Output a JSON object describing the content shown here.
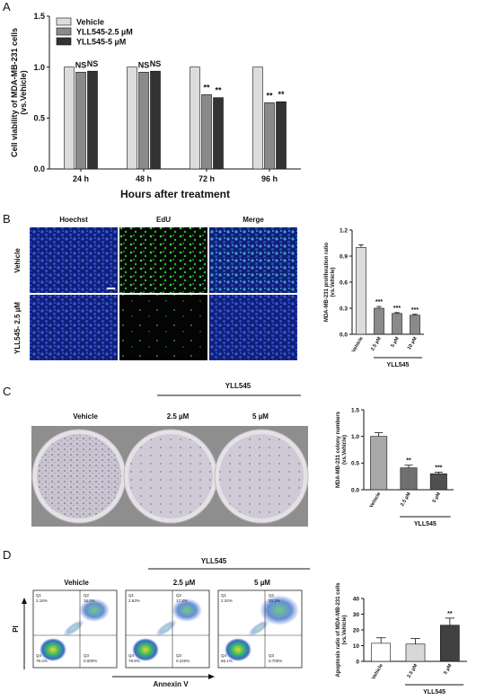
{
  "panel_labels": [
    "A",
    "B",
    "C",
    "D"
  ],
  "edu_images": {
    "columns": [
      "Hoechst",
      "EdU",
      "Merge"
    ],
    "rows": [
      "Vehicle",
      "YLL545- 2.5 µM"
    ]
  },
  "colony_images": {
    "group": "YLL545",
    "columns": [
      "Vehicle",
      "2.5 µM",
      "5 µM"
    ]
  },
  "flow_plots": {
    "group": "YLL545",
    "columns": [
      "Vehicle",
      "2.5 µM",
      "5 µM"
    ],
    "x_label": "Annexin V",
    "y_label": "PI",
    "quadrant_names": [
      "Q1",
      "Q2",
      "Q4",
      "Q3"
    ],
    "quadrant_values": [
      [
        "2.16%",
        "16.0%",
        "79.2%",
        "0.000%"
      ],
      [
        "2.63%",
        "17.3%",
        "79.8%",
        "0.240%"
      ],
      [
        "2.34%",
        "30.2%",
        "66.1%",
        "0.700%"
      ]
    ]
  },
  "chart_data": [
    {
      "type": "grouped_bar",
      "y_label": [
        "Cell viability of MDA-MB-231 cells",
        "(vs.Vehicle)"
      ],
      "x_label": "Hours after treatment",
      "categories": [
        "24 h",
        "48 h",
        "72 h",
        "96 h"
      ],
      "series": [
        {
          "name": "Vehicle",
          "color": "#dcdcdc",
          "values": [
            1.0,
            1.0,
            1.0,
            1.0
          ]
        },
        {
          "name": "YLL545-2.5 µM",
          "color": "#8a8a8a",
          "values": [
            0.95,
            0.95,
            0.73,
            0.65
          ],
          "annotations": [
            "NS",
            "NS",
            "**",
            "**"
          ]
        },
        {
          "name": "YLL545-5 µM",
          "color": "#333333",
          "values": [
            0.96,
            0.96,
            0.7,
            0.66
          ],
          "annotations": [
            "NS",
            "NS",
            "**",
            "**"
          ]
        }
      ],
      "ylim": [
        0,
        1.5
      ],
      "yticks": [
        {
          "value": 0,
          "label": "0.0"
        },
        0.5,
        {
          "value": 1,
          "label": "1.0"
        },
        1.5
      ],
      "legend": "top-left",
      "grid": false
    },
    {
      "type": "bar",
      "y_label": [
        "MDA-MB-231 proliferation ratio",
        "(vs.Vehicle)"
      ],
      "categories": [
        "Vehicle",
        "2.5 µM",
        "5 µM",
        "10 µM"
      ],
      "values": [
        1.0,
        0.3,
        0.24,
        0.22
      ],
      "errors": [
        0.03,
        0.02,
        0.01,
        0.01
      ],
      "annotations": [
        null,
        "***",
        "***",
        "***"
      ],
      "colors": [
        "#dcdcdc",
        "#8a8a8a",
        "#8a8a8a",
        "#8a8a8a"
      ],
      "group_label": "YLL545",
      "ylim": [
        0,
        1.2
      ],
      "yticks": [
        {
          "value": 0,
          "label": "0.0"
        },
        0.3,
        0.6,
        0.9,
        1.2
      ],
      "grid": false
    },
    {
      "type": "bar",
      "y_label": [
        "MDA-MB-231 colony numbers",
        "(vs.Vehicle)"
      ],
      "categories": [
        "Vehicle",
        "2.5 µM",
        "5 µM"
      ],
      "values": [
        1.0,
        0.41,
        0.3
      ],
      "errors": [
        0.07,
        0.05,
        0.03
      ],
      "annotations": [
        null,
        "**",
        "***"
      ],
      "colors": [
        "#a8a8a8",
        "#707070",
        "#505050"
      ],
      "group_label": "YLL545",
      "ylim": [
        0,
        1.5
      ],
      "yticks": [
        {
          "value": 0,
          "label": "0.0"
        },
        0.5,
        {
          "value": 1,
          "label": "1.0"
        },
        1.5
      ],
      "grid": false
    },
    {
      "type": "bar",
      "y_label": [
        "Apoptosis ratio of MDA-MB-231 cells",
        "(vs.Vehicle)"
      ],
      "categories": [
        "Vehicle",
        "2.5 µM",
        "5 µM"
      ],
      "values": [
        11.5,
        11,
        23
      ],
      "errors": [
        3.5,
        3.5,
        4.5
      ],
      "annotations": [
        null,
        null,
        "**"
      ],
      "colors": [
        "#ffffff",
        "#d8d8d8",
        "#404040"
      ],
      "group_label": "YLL545",
      "ylim": [
        0,
        40
      ],
      "yticks": [
        0,
        10,
        20,
        30,
        40
      ],
      "grid": false
    }
  ]
}
